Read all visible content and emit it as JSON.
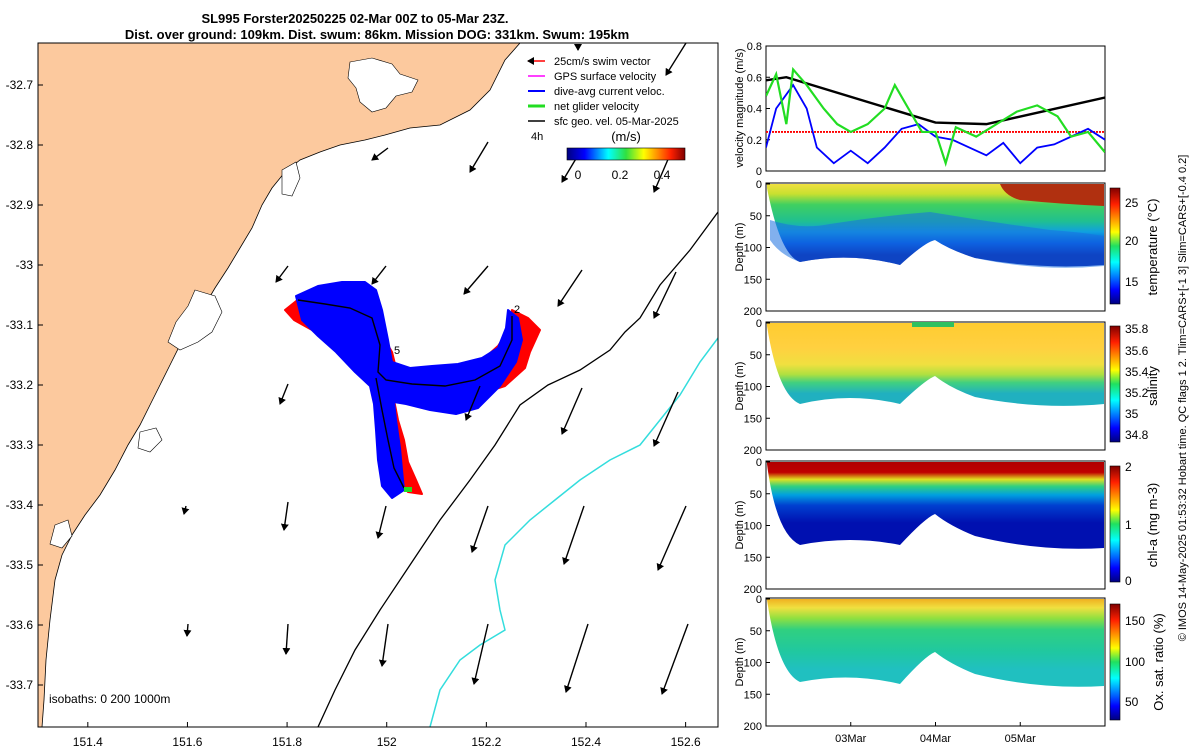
{
  "chart_data": [
    {
      "type": "map",
      "title_line1": "SL995 Forster20250225 02-Mar 00Z to 05-Mar 23Z.",
      "title_line2": "Dist. over ground: 109km. Dist. swum: 86km. Mission DOG: 331km. Swum: 195km",
      "xlim": [
        151.3,
        152.665
      ],
      "ylim": [
        -33.77,
        -32.63
      ],
      "x_ticks": [
        "151.4",
        "151.6",
        "151.8",
        "152",
        "152.2",
        "152.4",
        "152.6"
      ],
      "y_ticks": [
        "-32.7",
        "-32.8",
        "-32.9",
        "-33",
        "-33.1",
        "-33.2",
        "-33.3",
        "-33.4",
        "-33.5",
        "-33.6",
        "-33.7"
      ],
      "legend": [
        "25cm/s swim vector",
        "GPS surface velocity",
        "dive-avg current veloc.",
        "net glider velocity",
        "sfc geo. vel. 05-Mar-2025"
      ],
      "legend_colors": [
        "#ff0000",
        "#ff00ff",
        "#0000ff",
        "#00dd00",
        "#000000"
      ],
      "time_label": "4h",
      "colorbar_unit": "(m/s)",
      "colorbar_ticks": [
        "0",
        "0.2",
        "0.4"
      ],
      "isobath_label": "isobaths: 0   200  1000m",
      "marker_1": "2",
      "marker_2": "5",
      "colors": {
        "land": "#fcc99e",
        "dive_avg": "#0000ff",
        "swim": "#ff0000",
        "isobath_1000": "#33dddd"
      }
    },
    {
      "type": "line",
      "ylabel": "velocity magnitude (m/s)",
      "y_ticks": [
        "0",
        "0.2",
        "0.4",
        "0.6",
        "0.8"
      ],
      "ylim": [
        0,
        0.8
      ],
      "series": [
        {
          "name": "geostrophic",
          "color": "#000000",
          "x": [
            0,
            0.06,
            0.5,
            0.65,
            1
          ],
          "values": [
            0.58,
            0.6,
            0.31,
            0.3,
            0.47
          ]
        },
        {
          "name": "swim",
          "color": "#ff0000",
          "x": [
            0,
            1
          ],
          "values": [
            0.25,
            0.25
          ]
        },
        {
          "name": "dive-avg",
          "color": "#0000ff",
          "x": [
            0,
            0.03,
            0.08,
            0.12,
            0.15,
            0.2,
            0.25,
            0.3,
            0.35,
            0.4,
            0.45,
            0.5,
            0.55,
            0.6,
            0.65,
            0.7,
            0.75,
            0.8,
            0.85,
            0.9,
            0.95,
            1
          ],
          "values": [
            0.15,
            0.4,
            0.55,
            0.4,
            0.15,
            0.05,
            0.13,
            0.05,
            0.15,
            0.27,
            0.3,
            0.22,
            0.2,
            0.15,
            0.1,
            0.18,
            0.05,
            0.15,
            0.17,
            0.22,
            0.27,
            0.2
          ]
        },
        {
          "name": "net glider",
          "color": "#22dd22",
          "x": [
            0,
            0.03,
            0.06,
            0.08,
            0.12,
            0.17,
            0.21,
            0.25,
            0.3,
            0.35,
            0.38,
            0.42,
            0.46,
            0.5,
            0.53,
            0.56,
            0.62,
            0.68,
            0.74,
            0.8,
            0.86,
            0.9,
            0.95,
            1
          ],
          "values": [
            0.48,
            0.62,
            0.3,
            0.65,
            0.55,
            0.4,
            0.3,
            0.25,
            0.3,
            0.4,
            0.55,
            0.4,
            0.25,
            0.25,
            0.05,
            0.28,
            0.22,
            0.3,
            0.38,
            0.42,
            0.35,
            0.22,
            0.25,
            0.12
          ]
        }
      ]
    },
    {
      "type": "heatmap",
      "name": "temperature",
      "ylabel": "Depth (m)",
      "y_ticks": [
        "0",
        "50",
        "100",
        "150",
        "200"
      ],
      "clabel": "temperature (°C)",
      "c_ticks": [
        "15",
        "20",
        "25"
      ],
      "cmap_colors": [
        "#00007f",
        "#0040ff",
        "#00c0ff",
        "#20e0a0",
        "#60e020",
        "#c0e000",
        "#ffc000",
        "#ff4000",
        "#a00000"
      ]
    },
    {
      "type": "heatmap",
      "name": "salinity",
      "ylabel": "Depth (m)",
      "y_ticks": [
        "0",
        "50",
        "100",
        "150",
        "200"
      ],
      "clabel": "salinity",
      "c_ticks": [
        "34.8",
        "35",
        "35.2",
        "35.4",
        "35.6",
        "35.8"
      ]
    },
    {
      "type": "heatmap",
      "name": "chl-a",
      "ylabel": "Depth (m)",
      "y_ticks": [
        "0",
        "50",
        "100",
        "150",
        "200"
      ],
      "clabel": "chl-a (mg m-3)",
      "c_ticks": [
        "0",
        "1",
        "2"
      ]
    },
    {
      "type": "heatmap",
      "name": "oxygen",
      "ylabel": "Depth (m)",
      "y_ticks": [
        "0",
        "50",
        "100",
        "150",
        "200"
      ],
      "clabel": "Ox. sat. ratio (%)",
      "c_ticks": [
        "50",
        "100",
        "150"
      ],
      "x_ticks": [
        "03Mar",
        "04Mar",
        "05Mar"
      ]
    }
  ],
  "side_note": "© IMOS 14-May-2025 01:53:32 Hobart time. QC flags 1  2. Tlim=CARS+[-1 3] Slim=CARS+[-0.4 0.2]"
}
